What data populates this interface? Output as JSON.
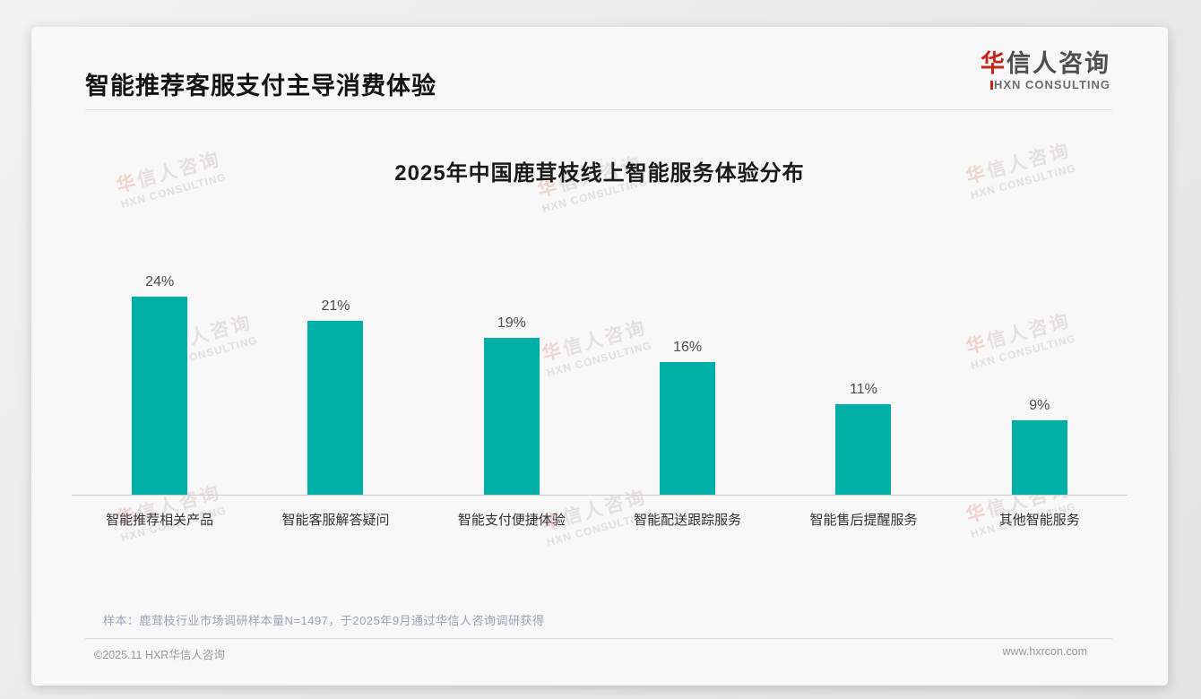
{
  "page": {
    "header": {
      "title": "智能推荐客服支付主导消费体验",
      "logo": {
        "cn_first": "华",
        "cn_rest": "信人咨询",
        "en_first": "H",
        "en_rest": "XN CONSULTING"
      }
    },
    "watermark": {
      "cn_first": "华",
      "cn_rest": "信人咨询",
      "en": "HXN CONSULTING"
    },
    "footer": {
      "note": "样本：鹿茸枝行业市场调研样本量N=1497，于2025年9月通过华信人咨询调研获得",
      "copyright": "©2025.11 HXR华信人咨询",
      "website": "www.hxrcon.com"
    }
  },
  "colors": {
    "bar_teal": "#00b0a6",
    "logo_red": "#c8251d",
    "title_text": "#141414",
    "note_text": "#9aa6b6",
    "footer_text": "#9b9b9b",
    "axis_line": "#cccccc"
  },
  "chart_data": {
    "type": "bar",
    "title": "2025年中国鹿茸枝线上智能服务体验分布",
    "categories": [
      "智能推荐相关产品",
      "智能客服解答疑问",
      "智能支付便捷体验",
      "智能配送跟踪服务",
      "智能售后提醒服务",
      "其他智能服务"
    ],
    "values": [
      24,
      21,
      19,
      16,
      11,
      9
    ],
    "value_labels": [
      "24%",
      "21%",
      "19%",
      "16%",
      "11%",
      "9%"
    ],
    "unit": "%",
    "xlabel": "",
    "ylabel": "",
    "ylim": [
      0,
      26
    ],
    "grid": false,
    "legend": null,
    "bar_color": "#00b0a6"
  }
}
